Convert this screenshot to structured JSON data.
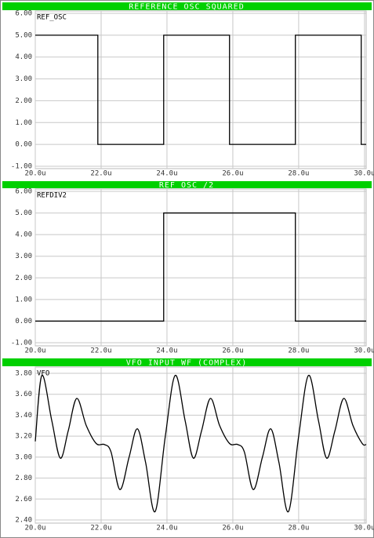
{
  "chart_data": [
    {
      "type": "line",
      "title": "REFERENCE OSC SQUARED",
      "x": [
        20,
        21.9,
        21.9,
        23.9,
        23.9,
        25.9,
        25.9,
        27.9,
        27.9,
        29.9,
        29.9,
        30.05
      ],
      "series": [
        {
          "name": "REF_OSC",
          "color": "#000000",
          "values": [
            5,
            5,
            0,
            0,
            5,
            5,
            0,
            0,
            5,
            5,
            0,
            0
          ]
        }
      ],
      "xlim": [
        20,
        30.05
      ],
      "xticks": [
        {
          "value": 20,
          "label": "20.0u"
        },
        {
          "value": 22,
          "label": "22.0u"
        },
        {
          "value": 24,
          "label": "24.0u"
        },
        {
          "value": 26,
          "label": "26.0u"
        },
        {
          "value": 28,
          "label": "28.0u"
        },
        {
          "value": 30,
          "label": "30.0u"
        }
      ],
      "ylim": [
        -1,
        6
      ],
      "yticks": [
        {
          "value": -1,
          "label": "-1.00"
        },
        {
          "value": 0,
          "label": "0.00"
        },
        {
          "value": 1,
          "label": "1.00"
        },
        {
          "value": 2,
          "label": "2.00"
        },
        {
          "value": 3,
          "label": "3.00"
        },
        {
          "value": 4,
          "label": "4.00"
        },
        {
          "value": 5,
          "label": "5.00"
        },
        {
          "value": 6,
          "label": "6.00"
        }
      ],
      "grid": true,
      "interpolation": "linear"
    },
    {
      "type": "line",
      "title": "REF OSC /2",
      "x": [
        20,
        23.9,
        23.9,
        27.9,
        27.9,
        30.05
      ],
      "series": [
        {
          "name": "REFDIV2",
          "color": "#000000",
          "values": [
            0,
            0,
            5,
            5,
            0,
            0
          ]
        }
      ],
      "xlim": [
        20,
        30.05
      ],
      "xticks": [
        {
          "value": 20,
          "label": "20.0u"
        },
        {
          "value": 22,
          "label": "22.0u"
        },
        {
          "value": 24,
          "label": "24.0u"
        },
        {
          "value": 26,
          "label": "26.0u"
        },
        {
          "value": 28,
          "label": "28.0u"
        },
        {
          "value": 30,
          "label": "30.0u"
        }
      ],
      "ylim": [
        -1,
        6
      ],
      "yticks": [
        {
          "value": -1,
          "label": "-1.00"
        },
        {
          "value": 0,
          "label": "0.00"
        },
        {
          "value": 1,
          "label": "1.00"
        },
        {
          "value": 2,
          "label": "2.00"
        },
        {
          "value": 3,
          "label": "3.00"
        },
        {
          "value": 4,
          "label": "4.00"
        },
        {
          "value": 5,
          "label": "5.00"
        },
        {
          "value": 6,
          "label": "6.00"
        }
      ],
      "grid": true,
      "interpolation": "linear"
    },
    {
      "type": "line",
      "title": "VFO INPUT WF (COMPLEX)",
      "x": [
        20.0,
        20.2,
        20.5,
        20.76,
        21.0,
        21.26,
        21.55,
        21.85,
        22.1,
        22.3,
        22.57,
        22.85,
        23.1,
        23.35,
        23.64,
        23.95,
        24.25,
        24.55,
        24.8,
        25.05,
        25.32,
        25.6,
        25.9,
        26.15,
        26.35,
        26.62,
        26.9,
        27.15,
        27.4,
        27.69,
        28.0,
        28.3,
        28.6,
        28.85,
        29.1,
        29.37,
        29.65,
        29.93,
        30.05
      ],
      "series": [
        {
          "name": "VFO",
          "color": "#000000",
          "values": [
            3.15,
            3.78,
            3.35,
            2.99,
            3.25,
            3.56,
            3.3,
            3.13,
            3.12,
            3.05,
            2.69,
            3.0,
            3.27,
            2.95,
            2.48,
            3.2,
            3.78,
            3.35,
            2.99,
            3.25,
            3.56,
            3.3,
            3.13,
            3.12,
            3.05,
            2.69,
            3.0,
            3.27,
            2.95,
            2.48,
            3.2,
            3.78,
            3.35,
            2.99,
            3.25,
            3.56,
            3.3,
            3.13,
            3.12
          ]
        }
      ],
      "xlim": [
        20,
        30.05
      ],
      "xticks": [
        {
          "value": 20,
          "label": "20.0u"
        },
        {
          "value": 22,
          "label": "22.0u"
        },
        {
          "value": 24,
          "label": "24.0u"
        },
        {
          "value": 26,
          "label": "26.0u"
        },
        {
          "value": 28,
          "label": "28.0u"
        },
        {
          "value": 30,
          "label": "30.0u"
        }
      ],
      "ylim": [
        2.4,
        3.8
      ],
      "yticks": [
        {
          "value": 2.4,
          "label": "2.40"
        },
        {
          "value": 2.6,
          "label": "2.60"
        },
        {
          "value": 2.8,
          "label": "2.80"
        },
        {
          "value": 3.0,
          "label": "3.00"
        },
        {
          "value": 3.2,
          "label": "3.20"
        },
        {
          "value": 3.4,
          "label": "3.40"
        },
        {
          "value": 3.6,
          "label": "3.60"
        },
        {
          "value": 3.8,
          "label": "3.80"
        }
      ],
      "grid": true,
      "interpolation": "spline"
    }
  ]
}
